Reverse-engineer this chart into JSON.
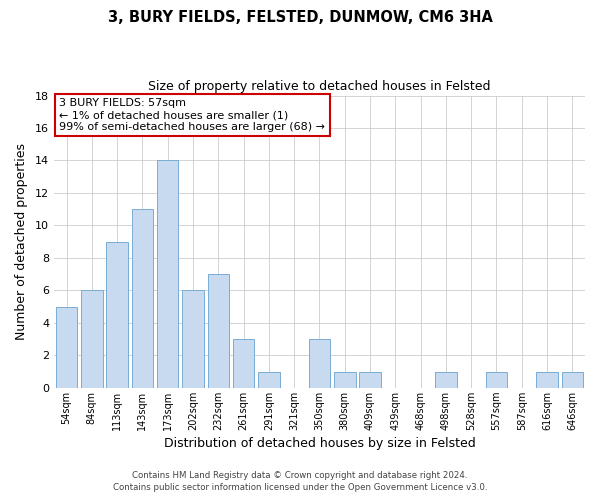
{
  "title": "3, BURY FIELDS, FELSTED, DUNMOW, CM6 3HA",
  "subtitle": "Size of property relative to detached houses in Felsted",
  "xlabel": "Distribution of detached houses by size in Felsted",
  "ylabel": "Number of detached properties",
  "bar_color": "#c8daf0",
  "bar_edge_color": "#7aadd4",
  "categories": [
    "54sqm",
    "84sqm",
    "113sqm",
    "143sqm",
    "173sqm",
    "202sqm",
    "232sqm",
    "261sqm",
    "291sqm",
    "321sqm",
    "350sqm",
    "380sqm",
    "409sqm",
    "439sqm",
    "468sqm",
    "498sqm",
    "528sqm",
    "557sqm",
    "587sqm",
    "616sqm",
    "646sqm"
  ],
  "values": [
    5,
    6,
    9,
    11,
    14,
    6,
    7,
    3,
    1,
    0,
    3,
    1,
    1,
    0,
    0,
    1,
    0,
    1,
    0,
    1,
    1
  ],
  "ylim": [
    0,
    18
  ],
  "yticks": [
    0,
    2,
    4,
    6,
    8,
    10,
    12,
    14,
    16,
    18
  ],
  "annotation_line1": "3 BURY FIELDS: 57sqm",
  "annotation_line2": "← 1% of detached houses are smaller (1)",
  "annotation_line3": "99% of semi-detached houses are larger (68) →",
  "annotation_box_color": "#ffffff",
  "annotation_box_edge_color": "#cc0000",
  "footer_line1": "Contains HM Land Registry data © Crown copyright and database right 2024.",
  "footer_line2": "Contains public sector information licensed under the Open Government Licence v3.0.",
  "bg_color": "#ffffff",
  "grid_color": "#cccccc"
}
